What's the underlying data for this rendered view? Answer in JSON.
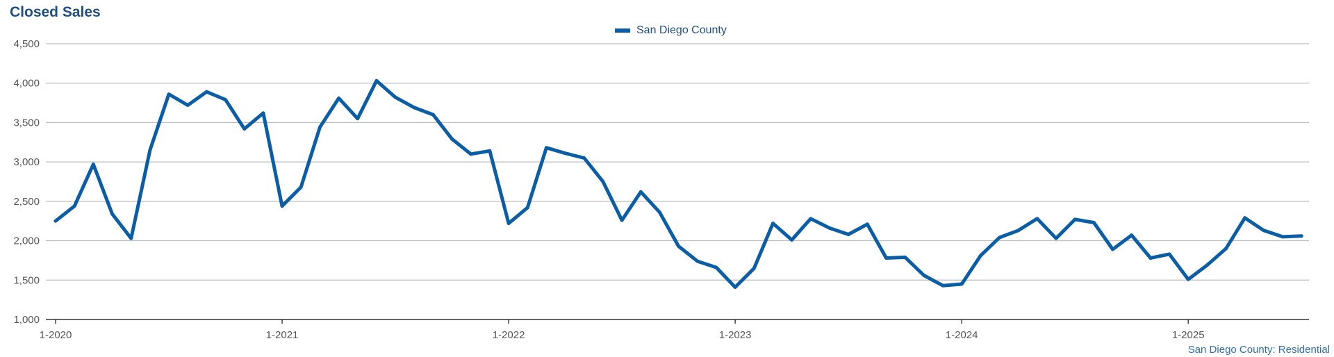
{
  "chart_data": {
    "type": "line",
    "title": "Closed Sales",
    "source": "San Diego County: Residential",
    "xlabel": "",
    "ylabel": "",
    "ylim": [
      1000,
      4500
    ],
    "yticks": [
      1000,
      1500,
      2000,
      2500,
      3000,
      3500,
      4000,
      4500
    ],
    "ytick_labels": [
      "1,000",
      "1,500",
      "2,000",
      "2,500",
      "3,000",
      "3,500",
      "4,000",
      "4,500"
    ],
    "xtick_labels": [
      "1-2020",
      "1-2021",
      "1-2022",
      "1-2023",
      "1-2024",
      "1-2025"
    ],
    "xtick_index": [
      0,
      12,
      24,
      36,
      48,
      60
    ],
    "grid": true,
    "legend_position": "top-center",
    "line_color": "#0b5ea6",
    "series": [
      {
        "name": "San Diego County",
        "values": [
          2250,
          2440,
          2970,
          2340,
          2030,
          3150,
          3860,
          3720,
          3890,
          3790,
          3420,
          3620,
          2440,
          2680,
          3440,
          3810,
          3550,
          4030,
          3820,
          3690,
          3600,
          3290,
          3100,
          3140,
          2220,
          2420,
          3180,
          3110,
          3050,
          2750,
          2260,
          2620,
          2360,
          1930,
          1740,
          1660,
          1410,
          1650,
          2220,
          2010,
          2280,
          2160,
          2080,
          2210,
          1780,
          1790,
          1560,
          1430,
          1450,
          1810,
          2040,
          2130,
          2280,
          2030,
          2270,
          2230,
          1890,
          2070,
          1780,
          1830,
          1510,
          1690,
          1900,
          2290,
          2130,
          2050,
          2060
        ]
      }
    ]
  }
}
